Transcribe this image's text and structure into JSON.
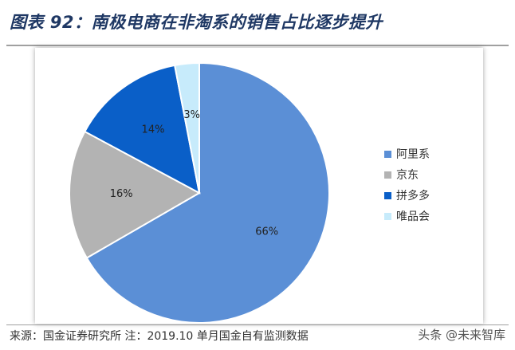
{
  "header": {
    "title": "图表 92：南极电商在非淘系的销售占比逐步提升"
  },
  "chart_data": {
    "type": "pie",
    "categories": [
      "阿里系",
      "京东",
      "拼多多",
      "唯品会"
    ],
    "values": [
      66,
      16,
      14,
      3
    ],
    "value_labels": [
      "66%",
      "16%",
      "14%",
      "3%"
    ],
    "colors": [
      "#5b8fd6",
      "#b3b3b3",
      "#0a5fc8",
      "#c7ebfb"
    ],
    "legend_position": "right",
    "start_angle": "12 o'clock",
    "direction": "clockwise"
  },
  "footer": {
    "source": "来源：国金证券研究所 注：2019.10 单月国金自有监测数据",
    "watermark": "头条 @未来智库"
  }
}
